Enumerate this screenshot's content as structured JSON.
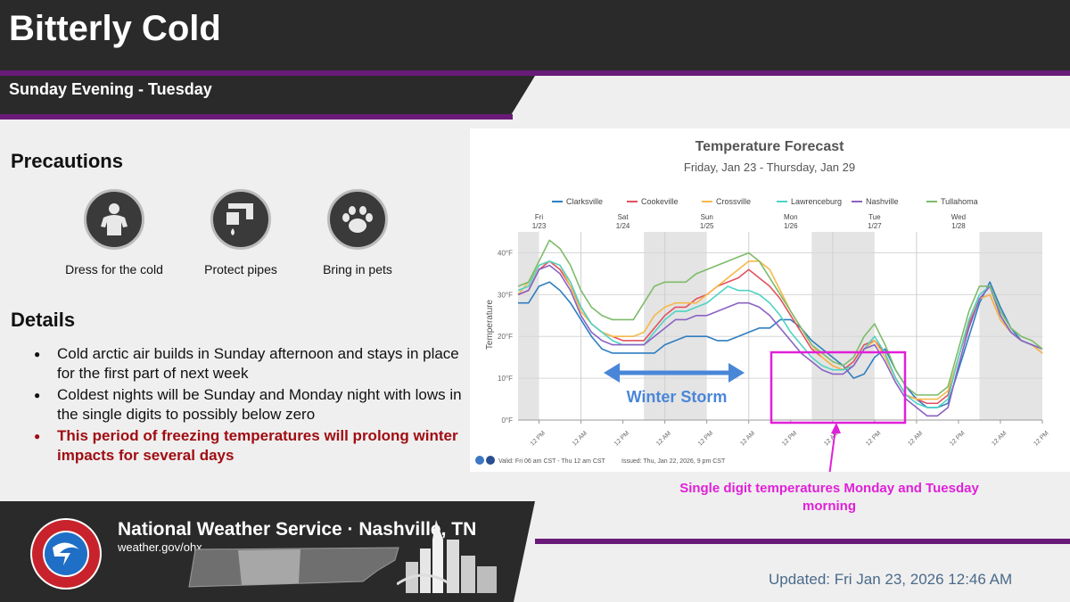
{
  "header": {
    "title": "Bitterly Cold",
    "subtitle": "Sunday Evening - Tuesday"
  },
  "precautions": {
    "heading": "Precautions",
    "items": [
      {
        "label": "Dress for the cold",
        "icon": "person-icon"
      },
      {
        "label": "Protect pipes",
        "icon": "faucet-icon"
      },
      {
        "label": "Bring in pets",
        "icon": "paw-icon"
      }
    ]
  },
  "details": {
    "heading": "Details",
    "items": [
      "Cold arctic air builds in Sunday afternoon and stays in place for the first part of next week",
      "Coldest nights will be Sunday and Monday night with lows in the single digits to possibly below zero",
      "This period of freezing temperatures will prolong winter impacts for several days"
    ]
  },
  "chart_panel": {
    "valid_text": "Valid: Fri 06 am CST - Thu 12 am CST",
    "issued_text": "Issued: Thu, Jan 22, 2026, 9 pm CST",
    "storm_label": "Winter Storm",
    "callout": "Single digit temperatures Monday and Tuesday morning"
  },
  "chart_data": {
    "type": "line",
    "title": "Temperature Forecast",
    "subtitle": "Friday, Jan 23 - Thursday, Jan 29",
    "ylabel": "Temperature",
    "ylim": [
      0,
      45
    ],
    "yticks": [
      "0°F",
      "10°F",
      "20°F",
      "30°F",
      "40°F"
    ],
    "ytick_values": [
      0,
      10,
      20,
      30,
      40
    ],
    "day_labels": [
      {
        "day": "Fri",
        "date": "1/23"
      },
      {
        "day": "Sat",
        "date": "1/24"
      },
      {
        "day": "Sun",
        "date": "1/25"
      },
      {
        "day": "Mon",
        "date": "1/26"
      },
      {
        "day": "Tue",
        "date": "1/27"
      },
      {
        "day": "Wed",
        "date": "1/28"
      }
    ],
    "xtick_labels": [
      "12 PM",
      "12 AM",
      "12 PM",
      "12 AM",
      "12 PM",
      "12 AM",
      "12 PM",
      "12 AM",
      "12 PM",
      "12 AM",
      "12 PM",
      "12 AM",
      "12 PM"
    ],
    "x_hours": [
      0,
      3,
      6,
      9,
      12,
      15,
      18,
      21,
      24,
      27,
      30,
      33,
      36,
      39,
      42,
      45,
      48,
      51,
      54,
      57,
      60,
      63,
      66,
      69,
      72,
      75,
      78,
      81,
      84,
      87,
      90,
      93,
      96,
      99,
      102,
      105,
      108,
      111,
      114,
      117,
      120,
      123,
      126,
      129,
      132,
      135,
      138,
      141,
      144,
      147,
      150
    ],
    "series": [
      {
        "name": "Clarksville",
        "color": "#2f7ec0",
        "values": [
          28,
          28,
          32,
          33,
          31,
          28,
          24,
          20,
          17,
          16,
          16,
          16,
          16,
          16,
          18,
          19,
          20,
          20,
          20,
          19,
          19,
          20,
          21,
          22,
          22,
          24,
          24,
          22,
          19,
          17,
          15,
          13,
          10,
          11,
          15,
          17,
          12,
          8,
          5,
          3,
          3,
          4,
          12,
          20,
          28,
          33,
          27,
          22,
          19,
          18,
          17
        ]
      },
      {
        "name": "Cookeville",
        "color": "#e2515e",
        "values": [
          30,
          31,
          36,
          38,
          36,
          32,
          27,
          23,
          21,
          20,
          19,
          19,
          19,
          22,
          25,
          27,
          27,
          29,
          30,
          32,
          33,
          34,
          36,
          34,
          32,
          29,
          25,
          21,
          17,
          15,
          13,
          12,
          14,
          18,
          19,
          16,
          10,
          6,
          5,
          4,
          4,
          6,
          15,
          23,
          29,
          30,
          24,
          21,
          19,
          18,
          16
        ]
      },
      {
        "name": "Crossville",
        "color": "#f5b94a",
        "values": [
          30,
          33,
          37,
          38,
          37,
          32,
          26,
          23,
          21,
          20,
          20,
          20,
          21,
          25,
          27,
          28,
          28,
          28,
          30,
          32,
          34,
          36,
          38,
          38,
          36,
          31,
          26,
          22,
          18,
          15,
          13,
          12,
          13,
          17,
          19,
          15,
          10,
          6,
          5,
          5,
          5,
          7,
          15,
          24,
          29,
          30,
          24,
          21,
          19,
          18,
          16
        ]
      },
      {
        "name": "Lawrenceburg",
        "color": "#4fd3c4",
        "values": [
          31,
          32,
          37,
          38,
          37,
          33,
          27,
          23,
          21,
          19,
          18,
          18,
          18,
          21,
          24,
          26,
          26,
          27,
          28,
          30,
          32,
          31,
          31,
          30,
          28,
          25,
          21,
          18,
          15,
          13,
          12,
          12,
          13,
          17,
          20,
          16,
          10,
          6,
          4,
          3,
          3,
          5,
          15,
          24,
          30,
          32,
          25,
          21,
          19,
          18,
          17
        ]
      },
      {
        "name": "Nashville",
        "color": "#8a62c2",
        "values": [
          30,
          31,
          36,
          37,
          35,
          31,
          25,
          21,
          19,
          18,
          18,
          18,
          18,
          20,
          22,
          24,
          24,
          25,
          25,
          26,
          27,
          28,
          28,
          27,
          25,
          22,
          19,
          16,
          14,
          12,
          11,
          11,
          13,
          17,
          18,
          14,
          9,
          5,
          3,
          1,
          1,
          3,
          13,
          22,
          29,
          32,
          25,
          21,
          19,
          18,
          17
        ]
      },
      {
        "name": "Tullahoma",
        "color": "#7dbb6a",
        "values": [
          32,
          33,
          38,
          43,
          41,
          37,
          31,
          27,
          25,
          24,
          24,
          24,
          28,
          32,
          33,
          33,
          33,
          35,
          36,
          37,
          38,
          39,
          40,
          38,
          34,
          30,
          26,
          22,
          18,
          16,
          14,
          13,
          15,
          20,
          23,
          18,
          12,
          8,
          6,
          6,
          6,
          8,
          17,
          26,
          32,
          32,
          26,
          22,
          20,
          19,
          17
        ]
      }
    ],
    "legend_position": "top",
    "grid": true
  },
  "footer": {
    "org": "National Weather Service · Nashville, TN",
    "url": "weather.gov/ohx",
    "updated": "Updated: Fri Jan 23, 2026 12:46 AM"
  },
  "colors": {
    "purple_accent": "#6a1b79",
    "header_bg": "#2a2a2a",
    "warning_red": "#a00d12",
    "storm_blue": "#4a86d8",
    "callout_magenta": "#e020d8"
  }
}
